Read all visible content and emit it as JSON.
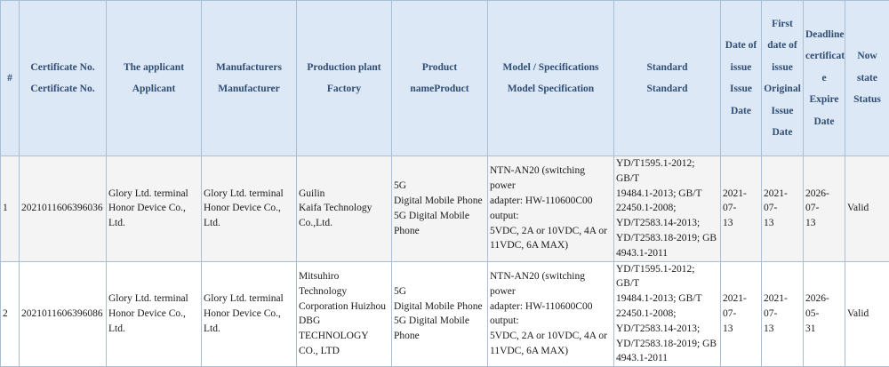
{
  "headers": [
    {
      "lines": [
        "#"
      ]
    },
    {
      "lines": [
        "Certificate No.",
        "Certificate No."
      ]
    },
    {
      "lines": [
        "The applicant",
        "Applicant"
      ]
    },
    {
      "lines": [
        "Manufacturers",
        "Manufacturer"
      ]
    },
    {
      "lines": [
        "Production plant",
        "Factory"
      ]
    },
    {
      "lines": [
        "Product",
        "nameProduct"
      ]
    },
    {
      "lines": [
        "Model / Specifications",
        "Model Specification"
      ]
    },
    {
      "lines": [
        "Standard",
        "Standard"
      ]
    },
    {
      "lines": [
        "Date of",
        "issue",
        "Issue",
        "Date"
      ]
    },
    {
      "lines": [
        "First",
        "date of",
        "issue",
        "Original",
        "Issue",
        "Date"
      ]
    },
    {
      "lines": [
        "Deadline",
        "certificat",
        "e",
        "Expire",
        "Date"
      ]
    },
    {
      "lines": [
        "Now",
        "state",
        "Status"
      ]
    }
  ],
  "rows": [
    {
      "cells": [
        {
          "lines": [
            "1"
          ]
        },
        {
          "lines": [
            "2021011606396036"
          ]
        },
        {
          "lines": [
            "Glory Ltd. terminal",
            "Honor Device Co., Ltd."
          ]
        },
        {
          "lines": [
            "Glory Ltd. terminal",
            "Honor Device Co., Ltd."
          ]
        },
        {
          "lines": [
            "Guilin",
            "Kaifa Technology",
            "Co.,Ltd."
          ]
        },
        {
          "lines": [
            "5G",
            "Digital Mobile Phone",
            "5G Digital Mobile",
            "Phone"
          ]
        },
        {
          "lines": [
            "NTN-AN20 (switching power",
            "adapter: HW-110600C00 output:",
            "5VDC, 2A or 10VDC, 4A or",
            "11VDC, 6A MAX)"
          ]
        },
        {
          "lines": [
            "YD/T1595.1-2012; GB/T",
            "19484.1-2013; GB/T",
            "22450.1-2008;",
            "YD/T2583.14-2013;",
            "YD/T2583.18-2019; GB",
            "4943.1-2011"
          ]
        },
        {
          "lines": [
            "2021-07-",
            "13"
          ]
        },
        {
          "lines": [
            "2021-07-",
            "13"
          ]
        },
        {
          "lines": [
            "2026-07-",
            "13"
          ]
        },
        {
          "lines": [
            "Valid"
          ]
        }
      ]
    },
    {
      "cells": [
        {
          "lines": [
            "2"
          ]
        },
        {
          "lines": [
            "2021011606396086"
          ]
        },
        {
          "lines": [
            "Glory Ltd. terminal",
            "Honor Device Co., Ltd."
          ]
        },
        {
          "lines": [
            "Glory Ltd. terminal",
            "Honor Device Co., Ltd."
          ]
        },
        {
          "lines": [
            "Mitsuhiro Technology",
            "Corporation Huizhou",
            "DBG TECHNOLOGY",
            "CO., LTD"
          ]
        },
        {
          "lines": [
            "5G",
            "Digital Mobile Phone",
            "5G Digital Mobile",
            "Phone"
          ]
        },
        {
          "lines": [
            "NTN-AN20 (switching power",
            "adapter: HW-110600C00 output:",
            "5VDC, 2A or 10VDC, 4A or",
            "11VDC, 6A MAX)"
          ]
        },
        {
          "lines": [
            "YD/T1595.1-2012; GB/T",
            "19484.1-2013; GB/T",
            "22450.1-2008;",
            "YD/T2583.14-2013;",
            "YD/T2583.18-2019; GB",
            "4943.1-2011"
          ]
        },
        {
          "lines": [
            "2021-07-",
            "13"
          ]
        },
        {
          "lines": [
            "2021-07-",
            "13"
          ]
        },
        {
          "lines": [
            "2026-05-",
            "31"
          ]
        },
        {
          "lines": [
            "Valid"
          ]
        }
      ]
    }
  ]
}
